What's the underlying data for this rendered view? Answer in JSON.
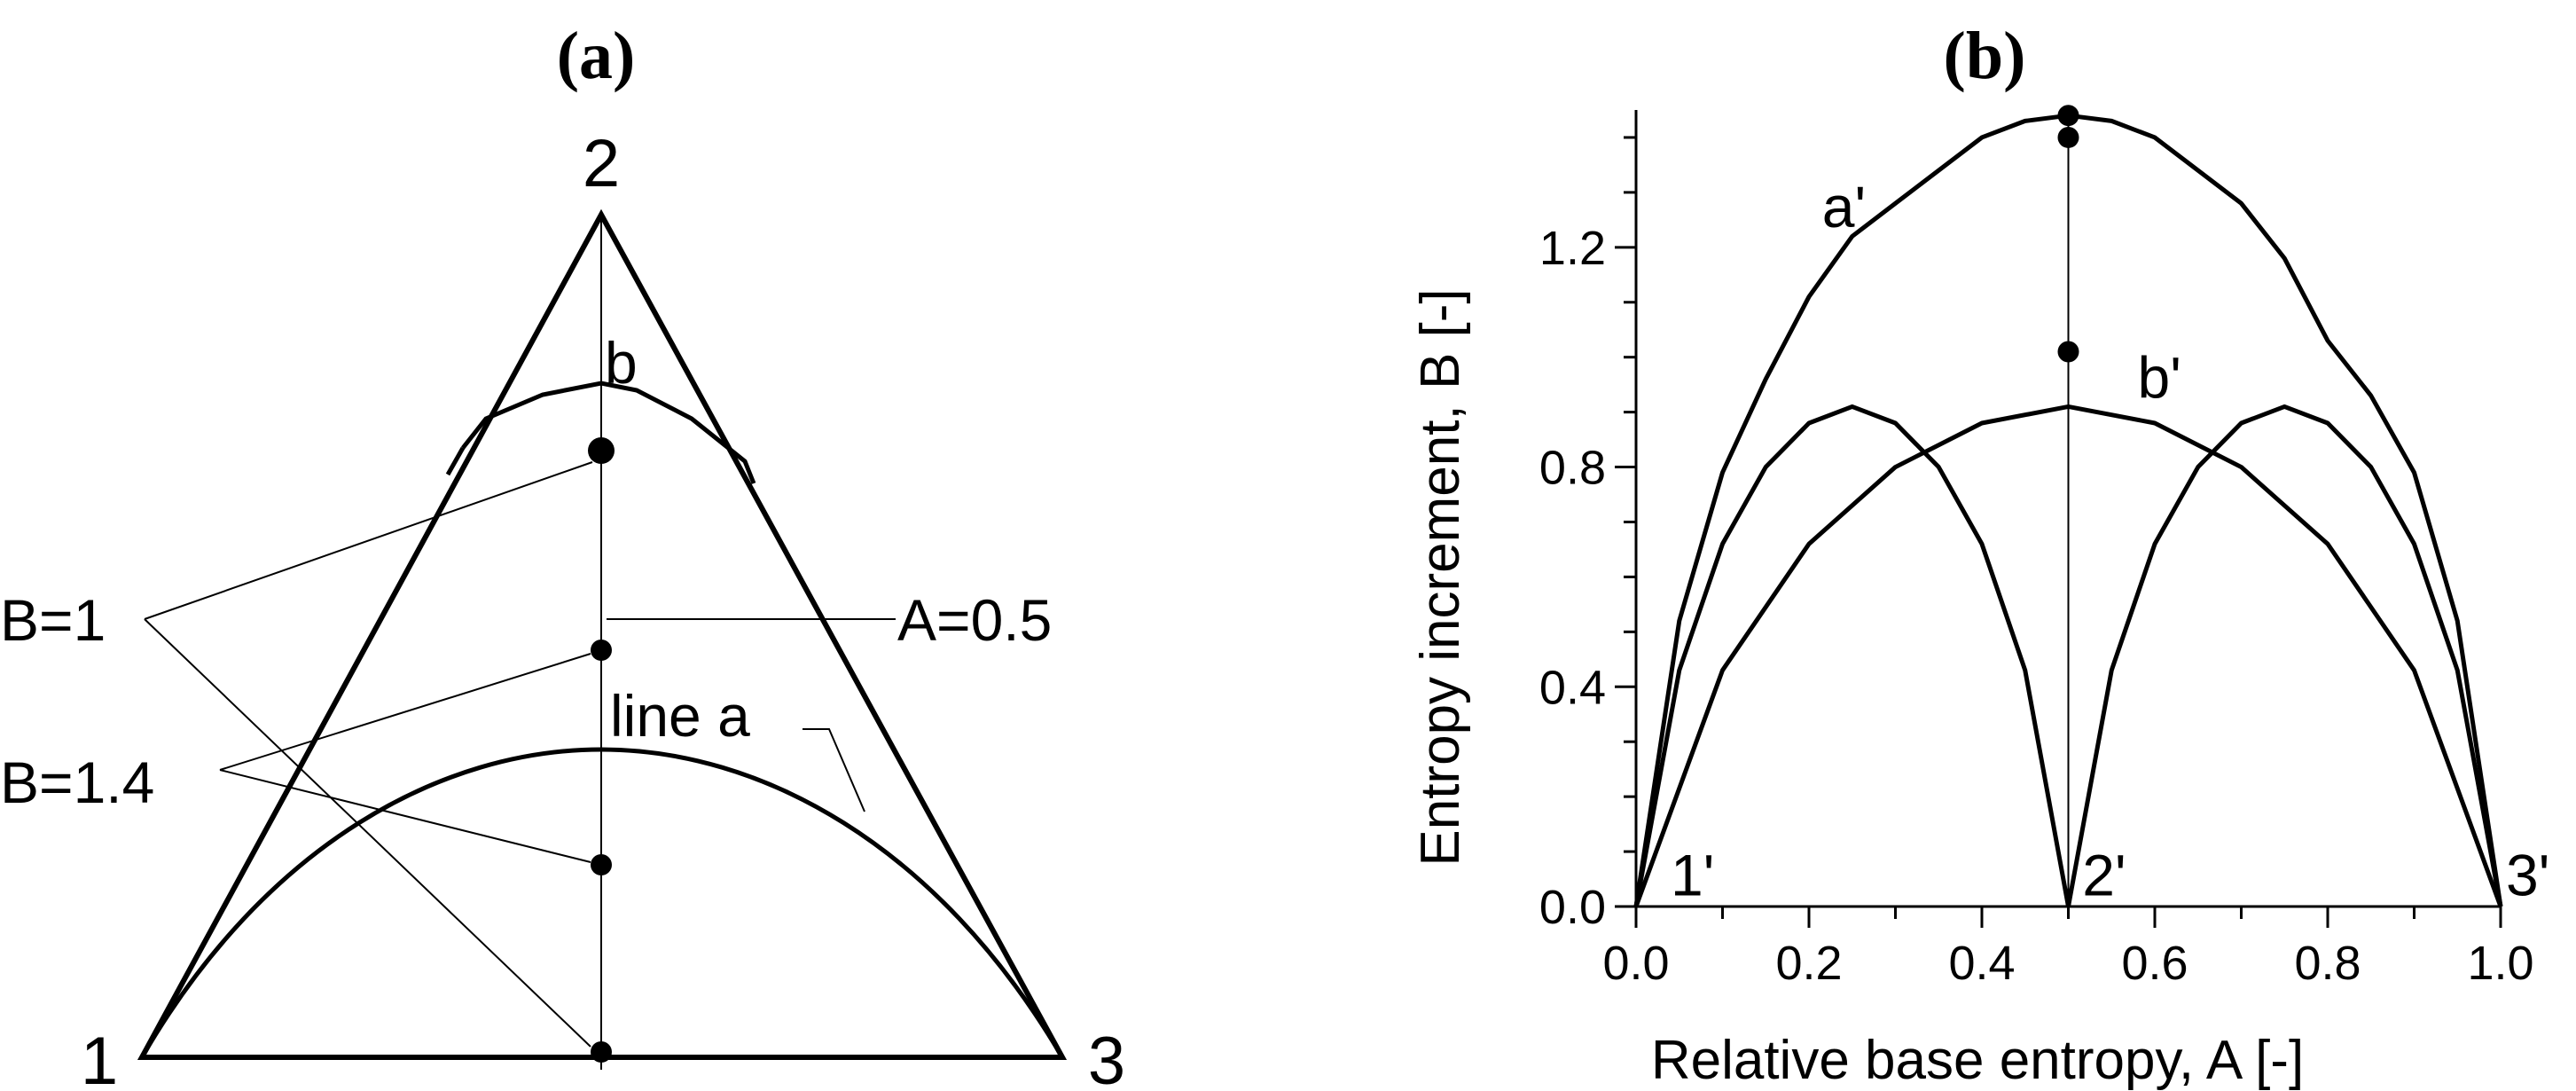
{
  "panel_a": {
    "label": "(a)",
    "vertices": [
      "1",
      "2",
      "3"
    ],
    "curve_labels": {
      "b": "b",
      "a": "line a"
    },
    "annotations": {
      "a_half": "A=0.5",
      "b_one": "B=1",
      "b_one_four": "B=1.4"
    }
  },
  "chart_data": {
    "type": "line",
    "panel_label": "(b)",
    "title": "",
    "xlabel": "Relative base entropy, A [-]",
    "ylabel": "Entropy increment,  B [-]",
    "xlim": [
      0,
      1.0
    ],
    "ylim": [
      0,
      1.45
    ],
    "xticks": [
      "0.0",
      "0.2",
      "0.4",
      "0.6",
      "0.8",
      "1.0"
    ],
    "yticks": [
      "0.0",
      "0.4",
      "0.8",
      "1.2"
    ],
    "grid": false,
    "series": [
      {
        "name": "a'",
        "x": [
          0,
          0.05,
          0.1,
          0.15,
          0.2,
          0.25,
          0.3,
          0.35,
          0.4,
          0.45,
          0.5,
          0.55,
          0.6,
          0.65,
          0.7,
          0.75,
          0.8,
          0.85,
          0.9,
          0.95,
          1.0
        ],
        "y": [
          0,
          0.52,
          0.79,
          0.96,
          1.11,
          1.22,
          1.28,
          1.34,
          1.4,
          1.43,
          1.44,
          1.43,
          1.4,
          1.34,
          1.28,
          1.18,
          1.03,
          0.93,
          0.79,
          0.52,
          0
        ]
      },
      {
        "name": "b'",
        "x": [
          0,
          0.1,
          0.2,
          0.3,
          0.4,
          0.5,
          0.6,
          0.7,
          0.8,
          0.9,
          1.0
        ],
        "y": [
          0,
          0.43,
          0.66,
          0.8,
          0.88,
          0.91,
          0.88,
          0.8,
          0.66,
          0.43,
          0
        ]
      },
      {
        "name": "",
        "x": [
          0,
          0.05,
          0.1,
          0.15,
          0.2,
          0.25,
          0.3,
          0.35,
          0.4,
          0.45,
          0.5
        ],
        "y": [
          0,
          0.43,
          0.66,
          0.8,
          0.88,
          0.91,
          0.88,
          0.8,
          0.66,
          0.43,
          0
        ]
      },
      {
        "name": "",
        "x": [
          0.5,
          0.55,
          0.6,
          0.65,
          0.7,
          0.75,
          0.8,
          0.85,
          0.9,
          0.95,
          1.0
        ],
        "y": [
          0,
          0.43,
          0.66,
          0.8,
          0.88,
          0.91,
          0.88,
          0.8,
          0.66,
          0.43,
          0
        ]
      }
    ],
    "vertical_line": {
      "x": 0.5,
      "y": [
        0,
        1.44
      ]
    },
    "points": [
      {
        "x": 0.5,
        "y": 1.44
      },
      {
        "x": 0.5,
        "y": 1.4
      },
      {
        "x": 0.5,
        "y": 1.01
      }
    ],
    "point_labels": [
      "1'",
      "2'",
      "3'"
    ]
  }
}
